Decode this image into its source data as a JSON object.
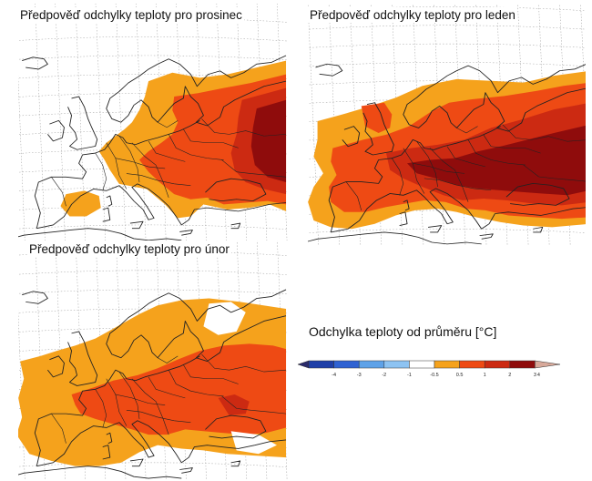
{
  "maps": [
    {
      "id": "prosinec",
      "title": "Předpověď odchylky teploty pro prosinec"
    },
    {
      "id": "leden",
      "title": "Předpověď odchylky teploty pro leden"
    },
    {
      "id": "unor",
      "title": "Předpověď odchylky teploty pro únor"
    }
  ],
  "legend": {
    "title": "Odchylka teploty od průměru [°C]",
    "bins": [
      {
        "lower": "-4",
        "upper": "-3",
        "color": "#1f3fa8"
      },
      {
        "lower": "-3",
        "upper": "-2",
        "color": "#2f62d2"
      },
      {
        "lower": "-2",
        "upper": "-1",
        "color": "#5ea2e8"
      },
      {
        "lower": "-1",
        "upper": "-0.5",
        "color": "#8dc3f2"
      },
      {
        "lower": "-0.5",
        "upper": "0.5",
        "color": "#ffffff"
      },
      {
        "lower": "0.5",
        "upper": "1",
        "color": "#f5a21c"
      },
      {
        "lower": "1",
        "upper": "2",
        "color": "#ee4a14"
      },
      {
        "lower": "2",
        "upper": "3",
        "color": "#cc2a12"
      },
      {
        "lower": "3",
        "upper": "4",
        "color": "#8f0c0c"
      },
      {
        "lower": "4",
        "upper": "",
        "color": "#d8a99a"
      }
    ],
    "below_color": "#2a2a6a",
    "tick_labels": [
      "-4",
      "-3",
      "-2",
      "-1",
      "-0.5",
      "0.5",
      "1",
      "2",
      "3",
      "4"
    ]
  },
  "colors": {
    "anomaly_0_5_to_1": "#f5a21c",
    "anomaly_1_to_2": "#ee4a14",
    "anomaly_2_to_3": "#cc2a12",
    "anomaly_3_to_4": "#8f0c0c",
    "coastline": "#222222",
    "grid": "#9a9a9a"
  }
}
